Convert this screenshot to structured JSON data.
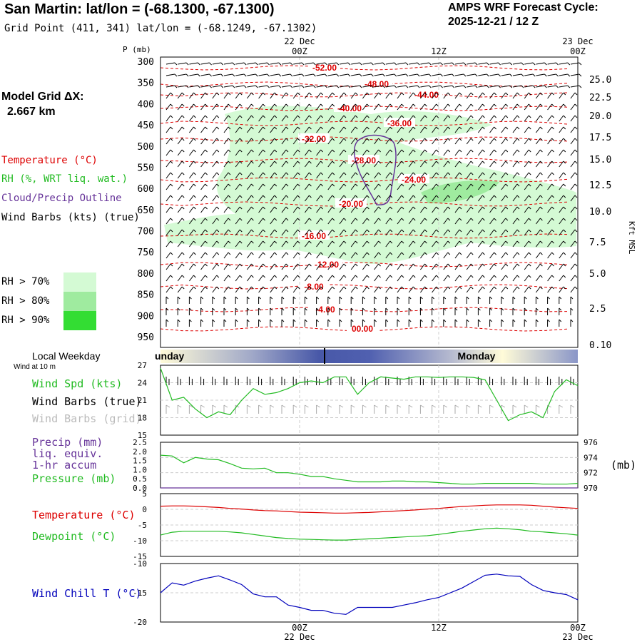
{
  "header": {
    "title": "San Martin:  lat/lon = (-68.1300, -67.1300)",
    "grid_point": "Grid Point (411, 341) lat/lon = (-68.1249, -67.1302)",
    "cycle_title": "AMPS WRF Forecast Cycle:",
    "cycle_date": "2025-12-21 / 12  Z"
  },
  "model_grid": {
    "label": "Model Grid ΔX:",
    "value": "2.667 km"
  },
  "legend": {
    "temperature": "Temperature (°C)",
    "rh": "RH (%, WRT liq. wat.)",
    "cloud": "Cloud/Precip Outline",
    "wind": "Wind Barbs (kts) (true)",
    "rh70": "RH > 70%",
    "rh80": "RH > 80%",
    "rh90": "RH > 90%",
    "rh70_color": "#d4fad4",
    "rh80_color": "#9feb9f",
    "rh90_color": "#33dd33"
  },
  "time_axis": {
    "top_dates": [
      "22 Dec",
      "23 Dec"
    ],
    "ticks": [
      "00Z",
      "12Z",
      "00Z"
    ],
    "bottom_dates": [
      "22 Dec",
      "23 Dec"
    ]
  },
  "weekday": {
    "label": "Local Weekday",
    "days": [
      "Sunday",
      "Monday"
    ],
    "sunday_visible": "unday"
  },
  "wind10": {
    "label": "Wind at 10 m"
  },
  "colors": {
    "temperature": "#dd0000",
    "rh": "#22bb22",
    "cloud": "#663399",
    "wind_chill": "#0000bb",
    "precip": "#663399",
    "grid_barbs": "#aaaaaa"
  },
  "panel_labels": {
    "wind_spd": "Wind Spd (kts)",
    "wind_barbs_true": "Wind Barbs (true)",
    "wind_barbs_grid": "Wind Barbs (grid)",
    "precip": "Precip (mm)",
    "precip_l2": "liq. equiv.",
    "precip_l3": "1-hr accum",
    "pressure": "Pressure (mb)",
    "pressure_unit": "(mb)",
    "temperature": "Temperature (°C)",
    "dewpoint": "Dewpoint (°C)",
    "wind_chill": "Wind Chill T (°C)"
  },
  "chart_data": [
    {
      "type": "line",
      "title": "San Martin:  lat/lon = (-68.1300, -67.1300)",
      "ylabel_left": "P (mb)",
      "ylabel_right": "Kft MSL",
      "y_ticks_left": [
        "300",
        "350",
        "400",
        "450",
        "500",
        "550",
        "600",
        "650",
        "700",
        "750",
        "800",
        "850",
        "900",
        "950"
      ],
      "y_ticks_right": [
        "25.0",
        "22.5",
        "20.0",
        "17.5",
        "15.0",
        "12.5",
        "10.0",
        "7.5",
        "5.0",
        "2.5",
        "0.10"
      ],
      "isotherms": [
        {
          "label": "-52.00"
        },
        {
          "label": "-48.00"
        },
        {
          "label": "-44.00"
        },
        {
          "label": "-40.00"
        },
        {
          "label": "-36.00"
        },
        {
          "label": "-32.00"
        },
        {
          "label": "-28.00"
        },
        {
          "label": "-24.00"
        },
        {
          "label": "-20.00"
        },
        {
          "label": "-16.00"
        },
        {
          "label": "-12.00"
        },
        {
          "label": "-8.00"
        },
        {
          "label": "-4.00"
        },
        {
          "label": "00.00"
        }
      ]
    },
    {
      "type": "line",
      "title": "",
      "ylabel": "Wind Spd (kts)",
      "y_ticks": [
        "27",
        "24",
        "21",
        "18",
        "15"
      ],
      "ylim": [
        15,
        27
      ],
      "x": [
        0,
        1,
        2,
        3,
        4,
        5,
        6,
        7,
        8,
        9,
        10,
        11,
        12,
        13,
        14,
        15,
        16,
        17,
        18,
        19,
        20,
        21,
        22,
        23,
        24,
        25,
        26,
        27,
        28,
        29,
        30,
        31,
        32,
        33,
        34,
        35,
        36
      ],
      "series": [
        {
          "name": "Wind Spd (kts)",
          "values": [
            26.5,
            21.0,
            21.5,
            19.5,
            18.0,
            19.0,
            18.5,
            21.0,
            23.0,
            22.0,
            22.3,
            23.0,
            24.0,
            24.3,
            24.0,
            25.0,
            25.0,
            22.0,
            24.0,
            25.0,
            24.8,
            24.6,
            25.0,
            25.0,
            24.9,
            25.0,
            25.0,
            24.9,
            24.5,
            21.0,
            17.5,
            18.5,
            19.0,
            18.0,
            22.5,
            24.5,
            23.5
          ]
        }
      ]
    },
    {
      "type": "line",
      "title": "",
      "y_ticks_left": [
        "2.5",
        "2.0",
        "1.5",
        "1.0",
        "0.5",
        "0.0"
      ],
      "y_ticks_right": [
        "976",
        "974",
        "972",
        "970"
      ],
      "ylim_left": [
        0,
        2.5
      ],
      "ylim_right": [
        970,
        976
      ],
      "x": [
        0,
        1,
        2,
        3,
        4,
        5,
        6,
        7,
        8,
        9,
        10,
        11,
        12,
        13,
        14,
        15,
        16,
        17,
        18,
        19,
        20,
        21,
        22,
        23,
        24,
        25,
        26,
        27,
        28,
        29,
        30,
        31,
        32,
        33,
        34,
        35,
        36
      ],
      "series": [
        {
          "name": "Pressure (mb)",
          "values": [
            974.3,
            974.2,
            973.3,
            974.0,
            973.8,
            973.7,
            973.2,
            972.6,
            972.5,
            972.6,
            972.0,
            972.0,
            971.8,
            971.5,
            971.5,
            971.2,
            971.0,
            970.8,
            970.8,
            970.8,
            970.9,
            970.9,
            970.8,
            970.8,
            970.7,
            970.6,
            970.5,
            970.5,
            970.6,
            970.6,
            970.6,
            970.6,
            970.6,
            970.5,
            970.5,
            970.5,
            970.6
          ]
        },
        {
          "name": "Precip (mm)",
          "values": [
            0,
            0,
            0,
            0,
            0,
            0,
            0,
            0,
            0,
            0,
            0,
            0,
            0,
            0,
            0,
            0,
            0,
            0,
            0,
            0,
            0,
            0,
            0,
            0,
            0,
            0,
            0,
            0,
            0,
            0,
            0,
            0,
            0,
            0,
            0,
            0,
            0
          ]
        }
      ]
    },
    {
      "type": "line",
      "title": "",
      "y_ticks": [
        "5",
        "0",
        "-5",
        "-10",
        "-15"
      ],
      "ylim": [
        -15,
        5
      ],
      "x": [
        0,
        1,
        2,
        3,
        4,
        5,
        6,
        7,
        8,
        9,
        10,
        11,
        12,
        13,
        14,
        15,
        16,
        17,
        18,
        19,
        20,
        21,
        22,
        23,
        24,
        25,
        26,
        27,
        28,
        29,
        30,
        31,
        32,
        33,
        34,
        35,
        36
      ],
      "series": [
        {
          "name": "Temperature (°C)",
          "values": [
            1.0,
            1.1,
            1.1,
            1.0,
            0.8,
            0.6,
            0.3,
            0.1,
            -0.2,
            -0.4,
            -0.5,
            -0.7,
            -0.9,
            -1.0,
            -1.1,
            -1.2,
            -1.2,
            -1.1,
            -1.0,
            -0.8,
            -0.6,
            -0.4,
            -0.2,
            0.1,
            0.3,
            0.6,
            0.9,
            1.1,
            1.3,
            1.4,
            1.4,
            1.4,
            1.3,
            1.0,
            0.7,
            0.5,
            0.3
          ]
        },
        {
          "name": "Dewpoint (°C)",
          "values": [
            -8.2,
            -7.3,
            -7.0,
            -7.0,
            -7.0,
            -7.0,
            -7.2,
            -7.5,
            -8.0,
            -8.5,
            -9.0,
            -9.3,
            -9.5,
            -9.6,
            -9.7,
            -9.8,
            -9.8,
            -9.6,
            -9.4,
            -9.2,
            -9.0,
            -8.8,
            -8.6,
            -8.4,
            -8.0,
            -7.5,
            -7.0,
            -6.6,
            -6.2,
            -6.0,
            -6.2,
            -6.5,
            -7.0,
            -7.2,
            -7.5,
            -7.8,
            -8.2
          ]
        }
      ]
    },
    {
      "type": "line",
      "title": "",
      "y_ticks": [
        "-10",
        "-15",
        "-20"
      ],
      "ylim": [
        -20,
        -10
      ],
      "x": [
        0,
        1,
        2,
        3,
        4,
        5,
        6,
        7,
        8,
        9,
        10,
        11,
        12,
        13,
        14,
        15,
        16,
        17,
        18,
        19,
        20,
        21,
        22,
        23,
        24,
        25,
        26,
        27,
        28,
        29,
        30,
        31,
        32,
        33,
        34,
        35,
        36
      ],
      "series": [
        {
          "name": "Wind Chill T (°C)",
          "values": [
            -15.0,
            -13.3,
            -13.7,
            -13.0,
            -12.5,
            -12.1,
            -12.8,
            -13.6,
            -15.2,
            -15.7,
            -15.7,
            -17.1,
            -17.5,
            -18.0,
            -18.0,
            -18.5,
            -18.7,
            -17.5,
            -17.5,
            -17.5,
            -17.5,
            -17.1,
            -16.7,
            -16.2,
            -15.8,
            -15.0,
            -14.2,
            -13.1,
            -12.0,
            -11.8,
            -12.1,
            -12.2,
            -13.6,
            -14.6,
            -15.0,
            -15.3,
            -16.2
          ]
        }
      ]
    }
  ]
}
